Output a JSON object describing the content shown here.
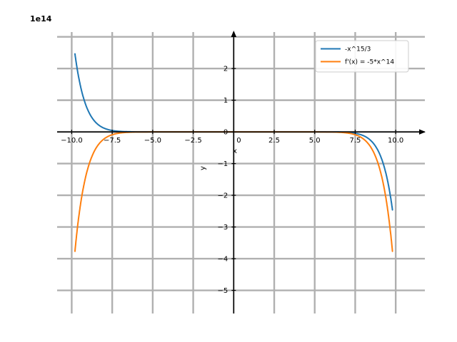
{
  "figure": {
    "offset_text": "1e14",
    "background": "#ffffff"
  },
  "chart_data": {
    "type": "line",
    "title": "",
    "xlabel": "x",
    "ylabel": "y",
    "offset_text": "1e14",
    "grid": true,
    "grid_color": "#b0b0b0",
    "axis_color": "#000000",
    "legend_position": "upper right",
    "legend_border_color": "#cccccc",
    "value_scale": 100000000000000.0,
    "xlim": [
      -10.9,
      11.8
    ],
    "ylim_1e14": [
      -5.73,
      3.15
    ],
    "x_range_sampled": [
      -9.8,
      9.8
    ],
    "sample_step": 0.02,
    "x_ticks": [
      {
        "value": -10,
        "label": "−10.0"
      },
      {
        "value": -7.5,
        "label": "−7.5"
      },
      {
        "value": -5,
        "label": "−5.0"
      },
      {
        "value": -2.5,
        "label": "−2.5"
      },
      {
        "value": 0,
        "label": "0"
      },
      {
        "value": 2.5,
        "label": "2.5"
      },
      {
        "value": 5,
        "label": "5.0"
      },
      {
        "value": 7.5,
        "label": "7.5"
      },
      {
        "value": 10,
        "label": "10.0"
      }
    ],
    "y_ticks_1e14": [
      {
        "value": -5,
        "label": "−5"
      },
      {
        "value": -4,
        "label": "−4"
      },
      {
        "value": -3,
        "label": "−3"
      },
      {
        "value": -2,
        "label": "−2"
      },
      {
        "value": -1,
        "label": "−1"
      },
      {
        "value": 0,
        "label": "0"
      },
      {
        "value": 1,
        "label": "1"
      },
      {
        "value": 2,
        "label": "2"
      },
      {
        "value": 3,
        "label": ""
      }
    ],
    "series": [
      {
        "name": "-x^15/3",
        "color": "#1f77b4",
        "coef": -0.3333333333,
        "exponent": 15,
        "linewidth": 2,
        "endpoint_values": {
          "x_min": -9.8,
          "y_at_x_min": 246000000000000.0,
          "x_max": 9.8,
          "y_at_x_max": -246000000000000.0
        }
      },
      {
        "name": "f'(x) = -5*x^14",
        "color": "#ff7f0e",
        "coef": -5,
        "exponent": 14,
        "linewidth": 2,
        "endpoint_values": {
          "x_min": -9.8,
          "y_at_x_min": -377000000000000.0,
          "x_max": 9.8,
          "y_at_x_max": -377000000000000.0
        }
      }
    ]
  }
}
